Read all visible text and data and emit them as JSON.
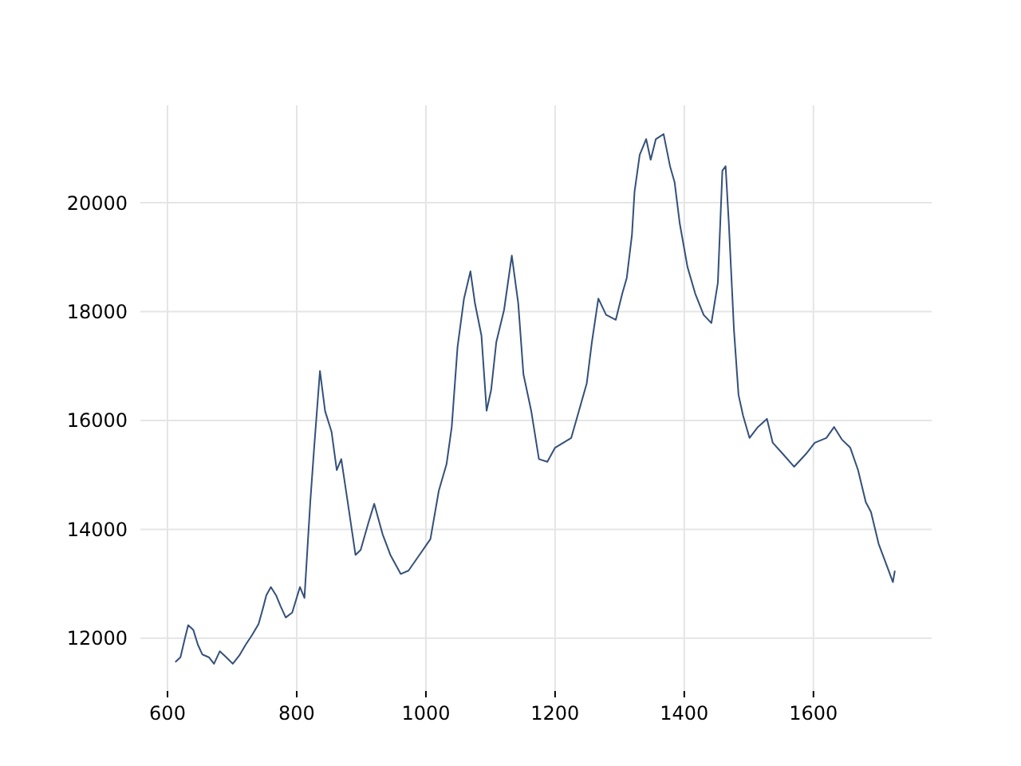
{
  "chart_data": {
    "type": "line",
    "grid": true,
    "xlim": [
      558,
      1783
    ],
    "ylim": [
      11030,
      21790
    ],
    "xticks": [
      600,
      800,
      1000,
      1200,
      1400,
      1600
    ],
    "yticks": [
      12000,
      14000,
      16000,
      18000,
      20000
    ],
    "series": [
      {
        "color": "#34507a",
        "x": [
          612,
          620,
          627,
          632,
          640,
          647,
          654,
          664,
          672,
          681,
          691,
          701,
          711,
          721,
          731,
          741,
          748,
          753,
          760,
          768,
          775,
          783,
          793,
          805,
          812,
          821,
          827,
          836,
          844,
          854,
          862,
          869,
          879,
          891,
          899,
          911,
          920,
          933,
          945,
          961,
          973,
          990,
          1007,
          1020,
          1032,
          1040,
          1049,
          1059,
          1069,
          1076,
          1086,
          1094,
          1101,
          1109,
          1121,
          1133,
          1143,
          1151,
          1163,
          1175,
          1188,
          1200,
          1225,
          1237,
          1249,
          1257,
          1267,
          1279,
          1294,
          1304,
          1311,
          1319,
          1323,
          1331,
          1341,
          1348,
          1356,
          1368,
          1378,
          1385,
          1393,
          1405,
          1417,
          1430,
          1442,
          1452,
          1459,
          1464,
          1469,
          1477,
          1484,
          1491,
          1501,
          1514,
          1528,
          1537,
          1553,
          1570,
          1588,
          1602,
          1620,
          1632,
          1644,
          1657,
          1669,
          1681,
          1689,
          1701,
          1714,
          1723,
          1726
        ],
        "values": [
          11560,
          11650,
          12000,
          12240,
          12150,
          11880,
          11700,
          11650,
          11530,
          11760,
          11650,
          11530,
          11680,
          11880,
          12060,
          12260,
          12560,
          12790,
          12940,
          12790,
          12590,
          12380,
          12470,
          12940,
          12740,
          14500,
          15500,
          16910,
          16170,
          15790,
          15090,
          15290,
          14500,
          13530,
          13620,
          14120,
          14470,
          13910,
          13530,
          13180,
          13240,
          13530,
          13820,
          14710,
          15200,
          15880,
          17350,
          18240,
          18740,
          18150,
          17560,
          16180,
          16560,
          17440,
          18030,
          19030,
          18150,
          16850,
          16180,
          15290,
          15240,
          15500,
          15680,
          16180,
          16680,
          17440,
          18240,
          17940,
          17850,
          18330,
          18620,
          19410,
          20200,
          20880,
          21170,
          20790,
          21170,
          21260,
          20670,
          20380,
          19620,
          18820,
          18330,
          17940,
          17790,
          18530,
          20590,
          20670,
          19620,
          17650,
          16470,
          16090,
          15680,
          15880,
          16030,
          15590,
          15380,
          15150,
          15380,
          15590,
          15680,
          15880,
          15650,
          15500,
          15090,
          14500,
          14320,
          13730,
          13320,
          13030,
          13240
        ]
      }
    ]
  }
}
